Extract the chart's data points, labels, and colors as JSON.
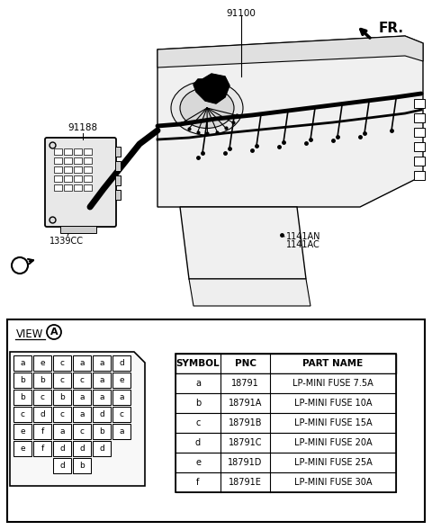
{
  "bg_color": "#ffffff",
  "part_numbers": {
    "main": "91100",
    "sub1": "91188",
    "sub2": "1339CC",
    "sub3": "1141AN",
    "sub4": "1141AC"
  },
  "fr_label": "FR.",
  "view_label": "VIEW",
  "view_circle_label": "A",
  "fuse_grid": [
    [
      "a",
      "e",
      "c",
      "a",
      "a",
      "d"
    ],
    [
      "b",
      "b",
      "c",
      "c",
      "a",
      "e"
    ],
    [
      "b",
      "c",
      "b",
      "a",
      "a",
      "a"
    ],
    [
      "c",
      "d",
      "c",
      "a",
      "d",
      "c"
    ],
    [
      "e",
      "f",
      "a",
      "c",
      "b",
      "a"
    ],
    [
      "e",
      "f",
      "d",
      "d",
      "d",
      ""
    ],
    [
      "",
      "",
      "d",
      "b",
      "",
      ""
    ]
  ],
  "table_headers": [
    "SYMBOL",
    "PNC",
    "PART NAME"
  ],
  "table_rows": [
    [
      "a",
      "18791",
      "LP-MINI FUSE 7.5A"
    ],
    [
      "b",
      "18791A",
      "LP-MINI FUSE 10A"
    ],
    [
      "c",
      "18791B",
      "LP-MINI FUSE 15A"
    ],
    [
      "d",
      "18791C",
      "LP-MINI FUSE 20A"
    ],
    [
      "e",
      "18791D",
      "LP-MINI FUSE 25A"
    ],
    [
      "f",
      "18791E",
      "LP-MINI FUSE 30A"
    ]
  ]
}
